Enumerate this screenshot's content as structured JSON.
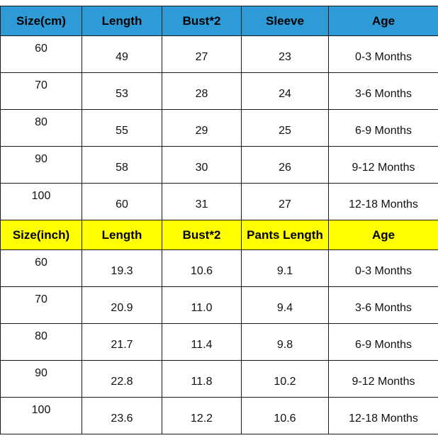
{
  "colors": {
    "header_cm_bg": "#2e9bd6",
    "header_inch_bg": "#ffff00",
    "header_text": "#000000",
    "border": "#1a1a1a"
  },
  "chart_data": [
    {
      "type": "table",
      "columns": [
        "Size(cm)",
        "Length",
        "Bust*2",
        "Sleeve",
        "Age"
      ],
      "rows": [
        [
          "60",
          "49",
          "27",
          "23",
          "0-3 Months"
        ],
        [
          "70",
          "53",
          "28",
          "24",
          "3-6 Months"
        ],
        [
          "80",
          "55",
          "29",
          "25",
          "6-9 Months"
        ],
        [
          "90",
          "58",
          "30",
          "26",
          "9-12 Months"
        ],
        [
          "100",
          "60",
          "31",
          "27",
          "12-18 Months"
        ]
      ]
    },
    {
      "type": "table",
      "columns": [
        "Size(inch)",
        "Length",
        "Bust*2",
        "Pants Length",
        "Age"
      ],
      "rows": [
        [
          "60",
          "19.3",
          "10.6",
          "9.1",
          "0-3 Months"
        ],
        [
          "70",
          "20.9",
          "11.0",
          "9.4",
          "3-6 Months"
        ],
        [
          "80",
          "21.7",
          "11.4",
          "9.8",
          "6-9 Months"
        ],
        [
          "90",
          "22.8",
          "11.8",
          "10.2",
          "9-12 Months"
        ],
        [
          "100",
          "23.6",
          "12.2",
          "10.6",
          "12-18 Months"
        ]
      ]
    }
  ]
}
